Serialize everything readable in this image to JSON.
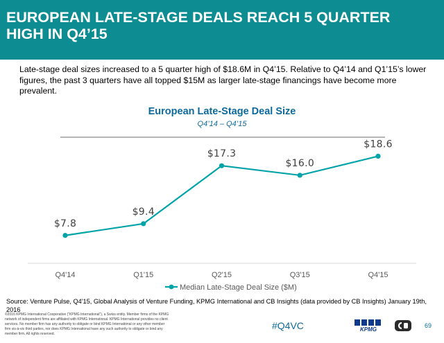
{
  "header": {
    "title_line1": "EUROPEAN LATE-STAGE DEALS REACH 5 QUARTER",
    "title_line2": "HIGH IN Q4’15"
  },
  "intro": "Late-stage deal sizes increased to a 5 quarter high of $18.6M in Q4’15. Relative to Q4’14 and Q1’15’s lower figures, the past 3 quarters have all topped $15M as larger late-stage financings have become more prevalent.",
  "chart_data": {
    "type": "line",
    "title": "European Late-Stage Deal Size",
    "subtitle": "Q4’14 – Q4’15",
    "categories": [
      "Q4'14",
      "Q1'15",
      "Q2'15",
      "Q3'15",
      "Q4'15"
    ],
    "series": [
      {
        "name": "Median Late-Stage Deal Size ($M)",
        "values": [
          7.8,
          9.4,
          17.3,
          16.0,
          18.6
        ],
        "labels": [
          "$7.8",
          "$9.4",
          "$17.3",
          "$16.0",
          "$18.6"
        ],
        "color": "#00a3a8"
      }
    ],
    "ylim": [
      4,
      21
    ],
    "grid": false,
    "legend": "bottom"
  },
  "footer": {
    "source": "Source: Venture Pulse, Q4'15, Global Analysis of Venture Funding, KPMG International and CB Insights (data provided by CB Insights) January 19th, 2016",
    "legal_lines": [
      "©2016 KPMG International Cooperative (“KPMG International”), a Swiss entity. Member firms of the KPMG",
      "network of independent firms are affiliated with KPMG International. KPMG International provides no client",
      "services. No member firm has any authority to obligate or bind KPMG International or any other member",
      "firm vis-à-vis third parties, nor does KPMG International have any such authority to obligate or bind any",
      "member firm. All rights reserved."
    ],
    "hashtag": "#Q4VC",
    "kpmg_logo_text": "KPMG",
    "page_number": "69"
  },
  "colors": {
    "header_bg": "#0d8d92",
    "title_blue": "#0d6a9c",
    "series": "#00a3a8"
  }
}
